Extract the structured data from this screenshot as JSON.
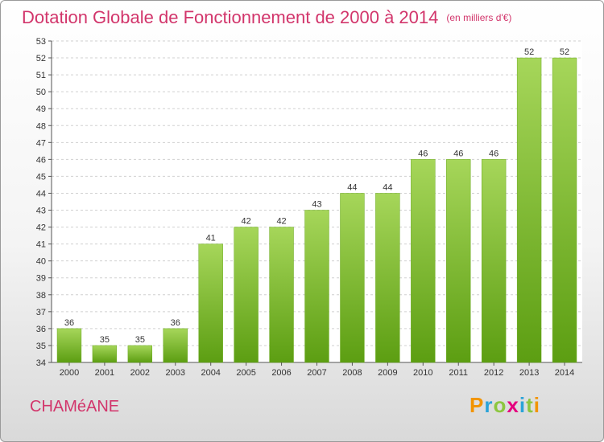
{
  "title": "Dotation Globale de Fonctionnement de 2000 à 2014",
  "unit": "(en milliers d'€)",
  "commune": "CHAMéANE",
  "logo": [
    "P",
    "r",
    "o",
    "x",
    "i",
    "t",
    "i"
  ],
  "colors": {
    "title": "#d2356b",
    "bar_top": "#a6d65a",
    "bar_bottom": "#5c9e12"
  },
  "chart_data": {
    "type": "bar",
    "title": "Dotation Globale de Fonctionnement de 2000 à 2014",
    "categories": [
      "2000",
      "2001",
      "2002",
      "2003",
      "2004",
      "2005",
      "2006",
      "2007",
      "2008",
      "2009",
      "2010",
      "2011",
      "2012",
      "2013",
      "2014"
    ],
    "values": [
      36,
      35,
      35,
      36,
      41,
      42,
      42,
      43,
      44,
      44,
      46,
      46,
      46,
      52,
      52
    ],
    "ylim": [
      34,
      53
    ],
    "yticks": [
      34,
      35,
      36,
      37,
      38,
      39,
      40,
      41,
      42,
      43,
      44,
      45,
      46,
      47,
      48,
      49,
      50,
      51,
      52,
      53
    ],
    "grid": true,
    "xlabel": "",
    "ylabel": ""
  }
}
